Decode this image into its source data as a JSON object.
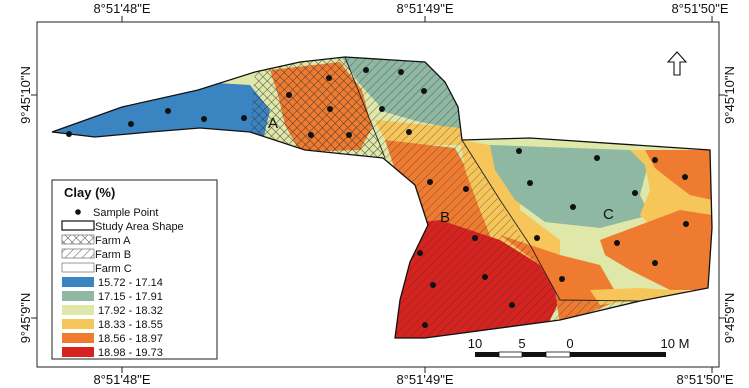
{
  "axes": {
    "top": [
      "8°51'48\"E",
      "8°51'49\"E",
      "8°51'50\"E"
    ],
    "bottom": [
      "8°51'48\"E",
      "8°51'49\"E",
      "8°51'50\"E"
    ],
    "left": [
      "9°45'10\"N",
      "9°45'9\"N"
    ],
    "right": [
      "9°45'10\"N",
      "9°45'9\"N"
    ]
  },
  "zones": [
    "A",
    "B",
    "C"
  ],
  "legend": {
    "title": "Clay (%)",
    "items": [
      {
        "label": "Sample Point",
        "kind": "point"
      },
      {
        "label": "Study Area Shape",
        "kind": "outline"
      },
      {
        "label": "Farm A",
        "kind": "crosshatch"
      },
      {
        "label": "Farm B",
        "kind": "diagonal"
      },
      {
        "label": "Farm C",
        "kind": "blank"
      }
    ],
    "classes": [
      {
        "label": "15.72 - 17.14",
        "color": "#3a84c2"
      },
      {
        "label": "17.15 - 17.91",
        "color": "#8fb8a3"
      },
      {
        "label": "17.92 - 18.32",
        "color": "#dfe8a8"
      },
      {
        "label": "18.33 - 18.55",
        "color": "#f7c65b"
      },
      {
        "label": "18.56 - 18.97",
        "color": "#ee7b30"
      },
      {
        "label": "18.98 - 19.73",
        "color": "#d7231f"
      }
    ]
  },
  "scalebar": {
    "labels": [
      "10",
      "5",
      "0",
      "10 M"
    ]
  },
  "north_arrow": "north-arrow-icon"
}
